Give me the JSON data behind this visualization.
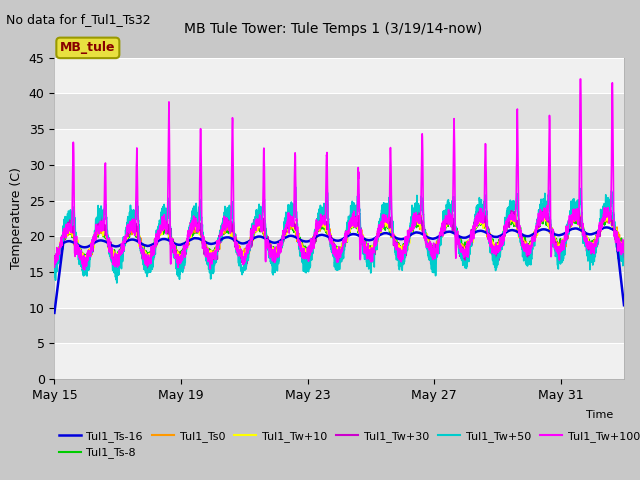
{
  "title": "MB Tule Tower: Tule Temps 1 (3/19/14-now)",
  "no_data_text": "No data for f_Tul1_Ts32",
  "ylabel": "Temperature (C)",
  "xlabel": "Time",
  "ylim": [
    0,
    45
  ],
  "yticks": [
    0,
    5,
    10,
    15,
    20,
    25,
    30,
    35,
    40,
    45
  ],
  "xtick_labels": [
    "May 15",
    "May 19",
    "May 23",
    "May 27",
    "May 31"
  ],
  "xtick_pos": [
    0,
    4,
    8,
    12,
    16
  ],
  "xlim": [
    0,
    18
  ],
  "fig_facecolor": "#c8c8c8",
  "plot_facecolor": "#e8e8e8",
  "band_colors": [
    "#f0f0f0",
    "#e0e0e0"
  ],
  "legend_box_color": "#e8e040",
  "legend_box_text": "MB_tule",
  "legend_box_text_color": "#880000",
  "series": [
    {
      "label": "Tul1_Ts-16",
      "color": "#0000dd",
      "lw": 1.8,
      "zorder": 8
    },
    {
      "label": "Tul1_Ts-8",
      "color": "#00cc00",
      "lw": 1.2,
      "zorder": 5
    },
    {
      "label": "Tul1_Ts0",
      "color": "#ff9900",
      "lw": 1.2,
      "zorder": 5
    },
    {
      "label": "Tul1_Tw+10",
      "color": "#ffff00",
      "lw": 1.2,
      "zorder": 5
    },
    {
      "label": "Tul1_Tw+30",
      "color": "#cc00cc",
      "lw": 1.2,
      "zorder": 6
    },
    {
      "label": "Tul1_Tw+50",
      "color": "#00cccc",
      "lw": 1.2,
      "zorder": 7
    },
    {
      "label": "Tul1_Tw+100",
      "color": "#ff00ff",
      "lw": 1.2,
      "zorder": 9
    }
  ],
  "n_days": 18,
  "pts_per_day": 144,
  "base_temp": 18.8,
  "trend_total": 2.0
}
